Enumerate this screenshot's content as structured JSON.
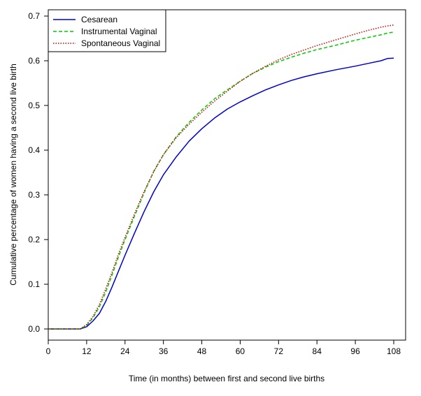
{
  "chart_data": {
    "type": "line",
    "title": "",
    "xlabel": "Time (in months) between first and second live births",
    "ylabel": "Cumulative percentage of women having a second live birth",
    "xlim": [
      0,
      108
    ],
    "ylim": [
      -0.025,
      0.705
    ],
    "x_ticks": [
      0,
      12,
      24,
      36,
      48,
      60,
      72,
      84,
      96,
      108
    ],
    "x_tick_labels": [
      "0",
      "12",
      "24",
      "36",
      "48",
      "60",
      "72",
      "84",
      "96",
      "108"
    ],
    "y_ticks": [
      0.0,
      0.1,
      0.2,
      0.3,
      0.4,
      0.5,
      0.6,
      0.7
    ],
    "y_tick_labels": [
      "0.0",
      "0.1",
      "0.2",
      "0.3",
      "0.4",
      "0.5",
      "0.6",
      "0.7"
    ],
    "grid": false,
    "legend_position": "top-left",
    "series": [
      {
        "name": "Cesarean",
        "color": "#0000cc",
        "dash": "solid",
        "x": [
          0,
          10,
          12,
          14,
          16,
          18,
          20,
          22,
          24,
          27,
          30,
          33,
          36,
          40,
          44,
          48,
          52,
          56,
          60,
          64,
          68,
          72,
          76,
          80,
          84,
          90,
          96,
          100,
          104,
          106,
          108
        ],
        "y": [
          0,
          0,
          0.005,
          0.018,
          0.035,
          0.062,
          0.095,
          0.13,
          0.165,
          0.215,
          0.263,
          0.307,
          0.345,
          0.385,
          0.42,
          0.448,
          0.472,
          0.492,
          0.508,
          0.522,
          0.535,
          0.546,
          0.556,
          0.564,
          0.571,
          0.58,
          0.588,
          0.594,
          0.6,
          0.605,
          0.606
        ]
      },
      {
        "name": "Instrumental Vaginal",
        "color": "#00cc00",
        "dash": "dashed",
        "x": [
          0,
          10,
          12,
          14,
          16,
          18,
          20,
          22,
          24,
          27,
          30,
          33,
          36,
          40,
          44,
          48,
          52,
          56,
          60,
          64,
          68,
          72,
          76,
          80,
          84,
          90,
          96,
          100,
          104,
          106,
          108
        ],
        "y": [
          0,
          0,
          0.008,
          0.025,
          0.05,
          0.083,
          0.122,
          0.162,
          0.2,
          0.253,
          0.305,
          0.353,
          0.39,
          0.43,
          0.462,
          0.49,
          0.515,
          0.535,
          0.554,
          0.572,
          0.586,
          0.598,
          0.608,
          0.617,
          0.625,
          0.635,
          0.646,
          0.652,
          0.658,
          0.662,
          0.664
        ]
      },
      {
        "name": "Spontaneous Vaginal",
        "color": "#cc0000",
        "dash": "dotted",
        "x": [
          0,
          10,
          12,
          14,
          16,
          18,
          20,
          22,
          24,
          27,
          30,
          33,
          36,
          40,
          44,
          48,
          52,
          56,
          60,
          64,
          68,
          72,
          76,
          80,
          84,
          90,
          96,
          100,
          104,
          106,
          108
        ],
        "y": [
          0,
          0,
          0.01,
          0.028,
          0.055,
          0.09,
          0.128,
          0.168,
          0.205,
          0.258,
          0.308,
          0.352,
          0.39,
          0.428,
          0.458,
          0.485,
          0.51,
          0.532,
          0.554,
          0.572,
          0.588,
          0.602,
          0.614,
          0.624,
          0.634,
          0.647,
          0.66,
          0.668,
          0.675,
          0.678,
          0.68
        ]
      }
    ]
  }
}
